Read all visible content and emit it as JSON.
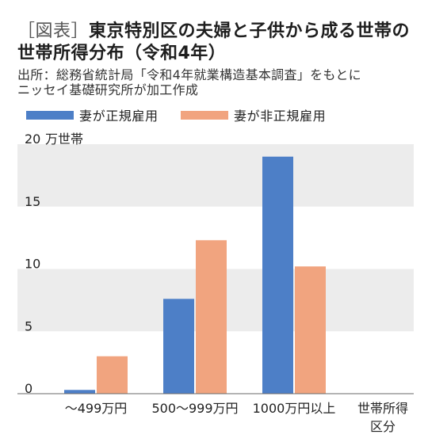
{
  "colors": {
    "regular": "#4d7fc7",
    "non_regular": "#f1a47f",
    "band": "#ececec",
    "axis": "#6a6a6a"
  },
  "chart_data": {
    "type": "bar",
    "figure_tag": "［図表］",
    "title_lines": [
      "東京特別区の夫婦と子供から成る世帯の",
      "世帯所得分布（令和4年）"
    ],
    "source_lines": [
      "出所：総務省統計局「令和4年就業構造基本調査」をもとに",
      "ニッセイ基礎研究所が加工作成"
    ],
    "categories": [
      "～499万円",
      "500～999万円",
      "1000万円以上"
    ],
    "series": [
      {
        "name": "妻が正規雇用",
        "color": "#4d7fc7",
        "values": [
          0.3,
          7.6,
          19.0
        ]
      },
      {
        "name": "妻が非正規雇用",
        "color": "#f1a47f",
        "values": [
          3.0,
          12.3,
          10.2
        ]
      }
    ],
    "ylabel": "万世帯",
    "xlabel_lines": [
      "世帯所得",
      "区分"
    ],
    "ylim": [
      0,
      20
    ],
    "yticks": [
      0,
      5,
      10,
      15,
      20
    ],
    "grid": false,
    "banded_background": true,
    "legend": "top-left"
  }
}
